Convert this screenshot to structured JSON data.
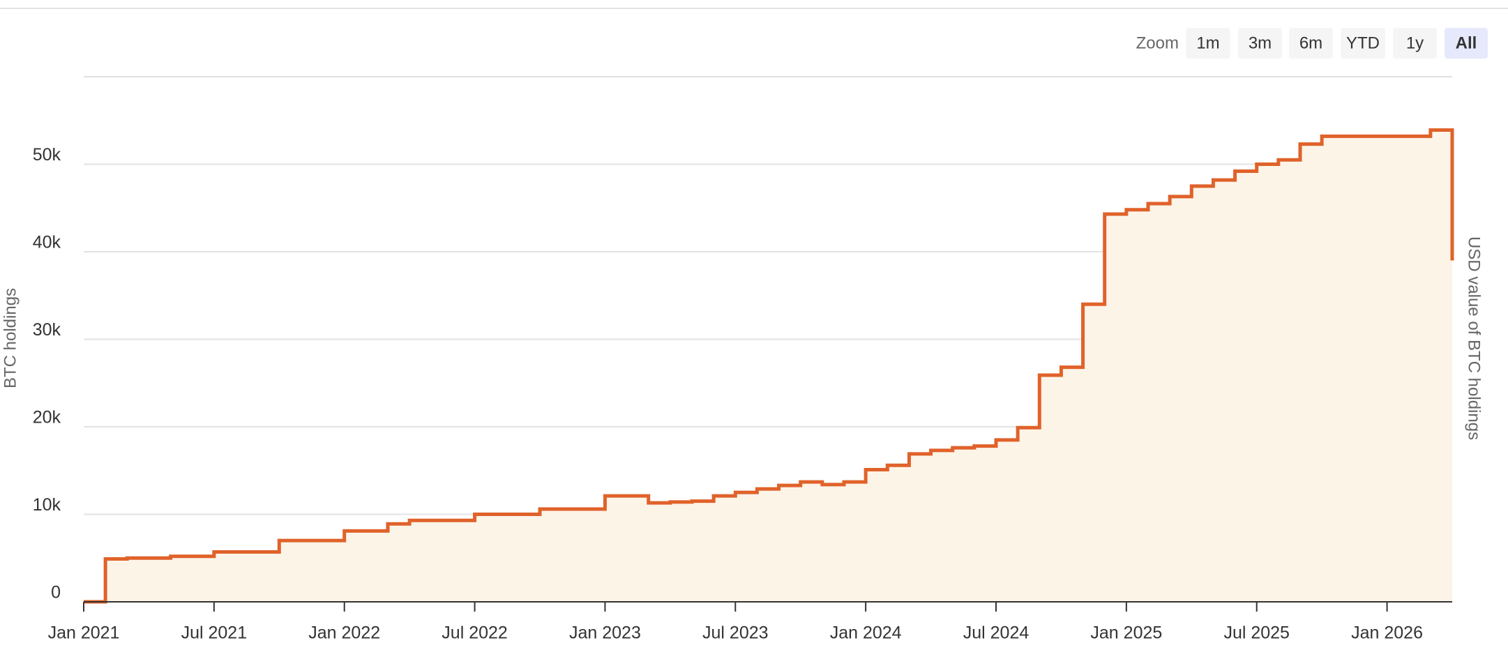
{
  "chart_data": {
    "type": "step-area",
    "y_label": "BTC holdings",
    "y2_label": "USD value of BTC holdings",
    "x": [
      "2021-01",
      "2021-02",
      "2021-03",
      "2021-05",
      "2021-07",
      "2021-10",
      "2022-01",
      "2022-03",
      "2022-04",
      "2022-07",
      "2022-10",
      "2023-01",
      "2023-03",
      "2023-04",
      "2023-05",
      "2023-06",
      "2023-07",
      "2023-08",
      "2023-09",
      "2023-10",
      "2023-11",
      "2023-12",
      "2024-01",
      "2024-02",
      "2024-03",
      "2024-04",
      "2024-05",
      "2024-06",
      "2024-07",
      "2024-08",
      "2024-09",
      "2024-10",
      "2024-11",
      "2024-12",
      "2025-01",
      "2025-02",
      "2025-03",
      "2025-04",
      "2025-05",
      "2025-06",
      "2025-07",
      "2025-08",
      "2025-09",
      "2025-10",
      "2026-03",
      "2026-04"
    ],
    "series": [
      {
        "name": "BTC holdings",
        "color": "#e0622a",
        "fill": "#fdf4e8",
        "values": [
          0,
          4900,
          5000,
          5200,
          5700,
          7000,
          8100,
          8900,
          9300,
          10000,
          10600,
          12100,
          11300,
          11400,
          11500,
          12100,
          12500,
          12900,
          13300,
          13700,
          13400,
          13700,
          15100,
          15600,
          16900,
          17300,
          17600,
          17800,
          18500,
          19900,
          25900,
          26800,
          34000,
          44300,
          44800,
          45500,
          46300,
          47500,
          48200,
          49200,
          50000,
          50500,
          52300,
          53200,
          53900,
          39000
        ]
      }
    ],
    "xlim": [
      "2021-01",
      "2026-04"
    ],
    "xticks": [
      {
        "value": "2021-01",
        "label": "Jan 2021"
      },
      {
        "value": "2021-07",
        "label": "Jul 2021"
      },
      {
        "value": "2022-01",
        "label": "Jan 2022"
      },
      {
        "value": "2022-07",
        "label": "Jul 2022"
      },
      {
        "value": "2023-01",
        "label": "Jan 2023"
      },
      {
        "value": "2023-07",
        "label": "Jul 2023"
      },
      {
        "value": "2024-01",
        "label": "Jan 2024"
      },
      {
        "value": "2024-07",
        "label": "Jul 2024"
      },
      {
        "value": "2025-01",
        "label": "Jan 2025"
      },
      {
        "value": "2025-07",
        "label": "Jul 2025"
      },
      {
        "value": "2026-01",
        "label": "Jan 2026"
      }
    ],
    "ylim": [
      0,
      60000
    ],
    "yticks": [
      0,
      {
        "value": 10000,
        "label": "10k"
      },
      {
        "value": 20000,
        "label": "20k"
      },
      {
        "value": 30000,
        "label": "30k"
      },
      {
        "value": 40000,
        "label": "40k"
      },
      {
        "value": 50000,
        "label": "50k"
      }
    ],
    "grid": true
  },
  "zoom": {
    "label": "Zoom",
    "buttons": [
      "1m",
      "3m",
      "6m",
      "YTD",
      "1y",
      "All"
    ],
    "selected": 5
  }
}
